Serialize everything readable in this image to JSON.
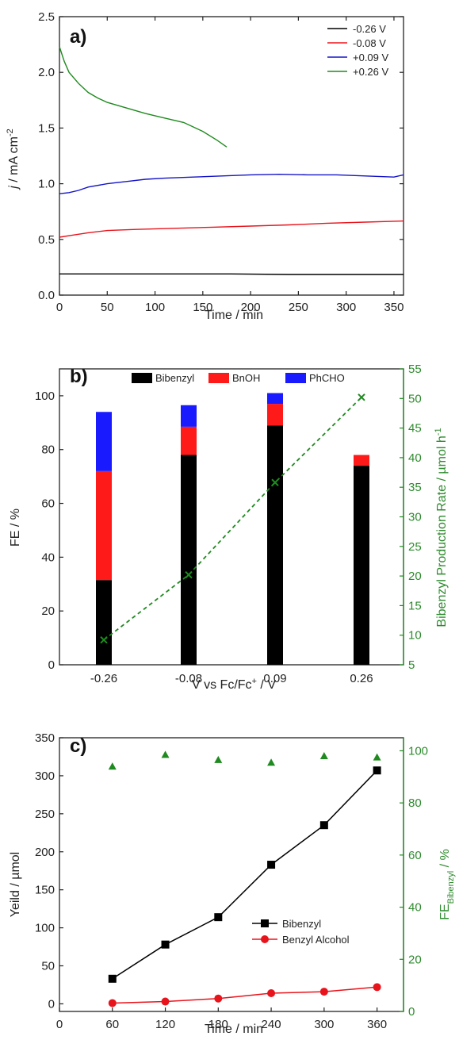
{
  "chart_data": [
    {
      "panel": "a)",
      "type": "line",
      "xlabel": "Time / min",
      "ylabel": "j / mA cm-2",
      "ylabel_italic": "j",
      "ylabel_rest": " / mA cm",
      "ylabel_sup": "-2",
      "xlim": [
        0,
        360
      ],
      "ylim": [
        0.0,
        2.5
      ],
      "xticks": [
        "0",
        "50",
        "100",
        "150",
        "200",
        "250",
        "300",
        "350"
      ],
      "yticks": [
        "0.0",
        "0.5",
        "1.0",
        "1.5",
        "2.0",
        "2.5"
      ],
      "legend_position": "top-right",
      "series": [
        {
          "name": "-0.26 V",
          "color": "#000000",
          "x": [
            0,
            60,
            120,
            180,
            240,
            300,
            360
          ],
          "y": [
            0.19,
            0.19,
            0.19,
            0.19,
            0.185,
            0.185,
            0.185
          ]
        },
        {
          "name": "-0.08 V",
          "color": "#e8141c",
          "x": [
            0,
            15,
            30,
            50,
            80,
            120,
            160,
            200,
            240,
            280,
            320,
            360
          ],
          "y": [
            0.52,
            0.54,
            0.56,
            0.58,
            0.59,
            0.6,
            0.61,
            0.62,
            0.63,
            0.645,
            0.655,
            0.665
          ]
        },
        {
          "name": "+0.09 V",
          "color": "#1414c8",
          "x": [
            0,
            10,
            20,
            30,
            50,
            70,
            90,
            110,
            140,
            170,
            200,
            230,
            260,
            290,
            320,
            350,
            360
          ],
          "y": [
            0.91,
            0.92,
            0.94,
            0.97,
            1.0,
            1.02,
            1.04,
            1.05,
            1.06,
            1.07,
            1.08,
            1.085,
            1.08,
            1.08,
            1.07,
            1.06,
            1.08
          ]
        },
        {
          "name": "+0.26 V",
          "color": "#1f8a1f",
          "x": [
            0,
            5,
            10,
            20,
            30,
            40,
            50,
            70,
            90,
            110,
            130,
            150,
            165,
            175
          ],
          "y": [
            2.23,
            2.1,
            2.0,
            1.9,
            1.82,
            1.77,
            1.73,
            1.68,
            1.63,
            1.59,
            1.55,
            1.47,
            1.39,
            1.33
          ]
        }
      ]
    },
    {
      "panel": "b)",
      "type": "bar",
      "stacked": true,
      "xlabel": "V vs Fc/Fc+ / V",
      "xlabel_pre": "V vs Fc/Fc",
      "xlabel_sup": "+",
      "xlabel_post": " / V",
      "ylabel": "FE / %",
      "y2label": "Bibenzyl Production Rate / µmol h-1",
      "y2label_main": "Bibenzyl Production Rate / µmol h",
      "y2label_sup": "-1",
      "categories": [
        "-0.26",
        "-0.08",
        "0.09",
        "0.26"
      ],
      "ylim": [
        0,
        110
      ],
      "yticks": [
        "0",
        "20",
        "40",
        "60",
        "80",
        "100"
      ],
      "y2lim": [
        5,
        55
      ],
      "y2ticks": [
        "5",
        "10",
        "15",
        "20",
        "25",
        "30",
        "35",
        "40",
        "45",
        "50",
        "55"
      ],
      "legend_position": "top",
      "series": [
        {
          "name": "Bibenzyl",
          "color": "#000000",
          "values": [
            31.5,
            78,
            89,
            74
          ]
        },
        {
          "name": "BnOH",
          "color": "#ff1a1a",
          "values": [
            40.5,
            10.5,
            8,
            4
          ]
        },
        {
          "name": "PhCHO",
          "color": "#1a1aff",
          "values": [
            22,
            8,
            4,
            0
          ]
        }
      ],
      "rate_series": {
        "color": "#1f8a1f",
        "values": [
          9.2,
          20.2,
          35.8,
          50.2
        ]
      }
    },
    {
      "panel": "c)",
      "type": "line",
      "xlabel": "Time / min",
      "ylabel": "Yeild / µmol",
      "y2label": "FE Bibenzyl / %",
      "y2label_main": "FE",
      "y2label_sub": "Bibenzyl",
      "y2label_post": " / %",
      "xlim": [
        0,
        390
      ],
      "xticks": [
        "0",
        "60",
        "120",
        "180",
        "240",
        "300",
        "360"
      ],
      "ylim": [
        -10,
        350
      ],
      "yticks": [
        "0",
        "50",
        "100",
        "150",
        "200",
        "250",
        "300",
        "350"
      ],
      "y2lim": [
        0,
        105
      ],
      "y2ticks": [
        "0",
        "20",
        "40",
        "60",
        "80",
        "100"
      ],
      "legend_position": "center-right",
      "series": [
        {
          "name": "Bibenzyl",
          "color": "#000000",
          "marker": "square",
          "x": [
            60,
            120,
            180,
            240,
            300,
            360
          ],
          "y": [
            33,
            78,
            114,
            183,
            235,
            307
          ]
        },
        {
          "name": "Benzyl Alcohol",
          "color": "#e8141c",
          "marker": "circle",
          "x": [
            60,
            120,
            180,
            240,
            300,
            360
          ],
          "y": [
            1,
            3,
            7,
            14,
            16,
            22
          ]
        }
      ],
      "fe_series": {
        "color": "#1f8a1f",
        "marker": "triangle",
        "x": [
          60,
          120,
          180,
          240,
          300,
          360
        ],
        "y": [
          94,
          98.5,
          96.5,
          95.5,
          98,
          97.5
        ]
      }
    }
  ]
}
